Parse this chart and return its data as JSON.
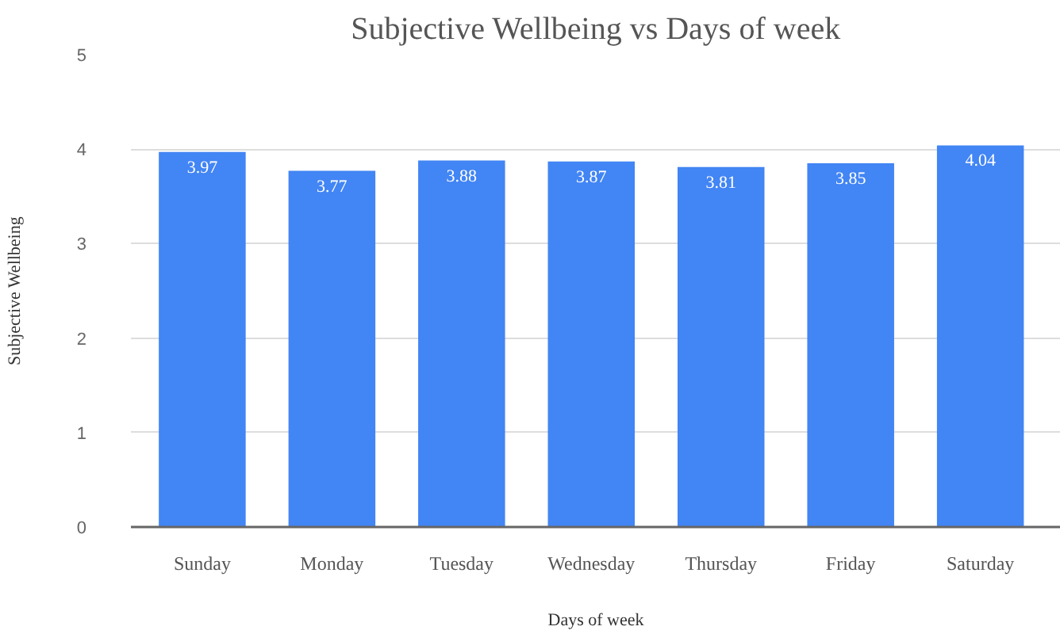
{
  "chart_data": {
    "type": "bar",
    "title": "Subjective Wellbeing vs Days of week",
    "xlabel": "Days of week",
    "ylabel": "Subjective Wellbeing",
    "categories": [
      "Sunday",
      "Monday",
      "Tuesday",
      "Wednesday",
      "Thursday",
      "Friday",
      "Saturday"
    ],
    "values": [
      3.97,
      3.77,
      3.88,
      3.87,
      3.81,
      3.85,
      4.04
    ],
    "color": "#4285f4",
    "ylim": [
      0,
      5
    ],
    "yticks": [
      0,
      1,
      2,
      3,
      4,
      5
    ],
    "grid": "y",
    "data_labels": true
  }
}
